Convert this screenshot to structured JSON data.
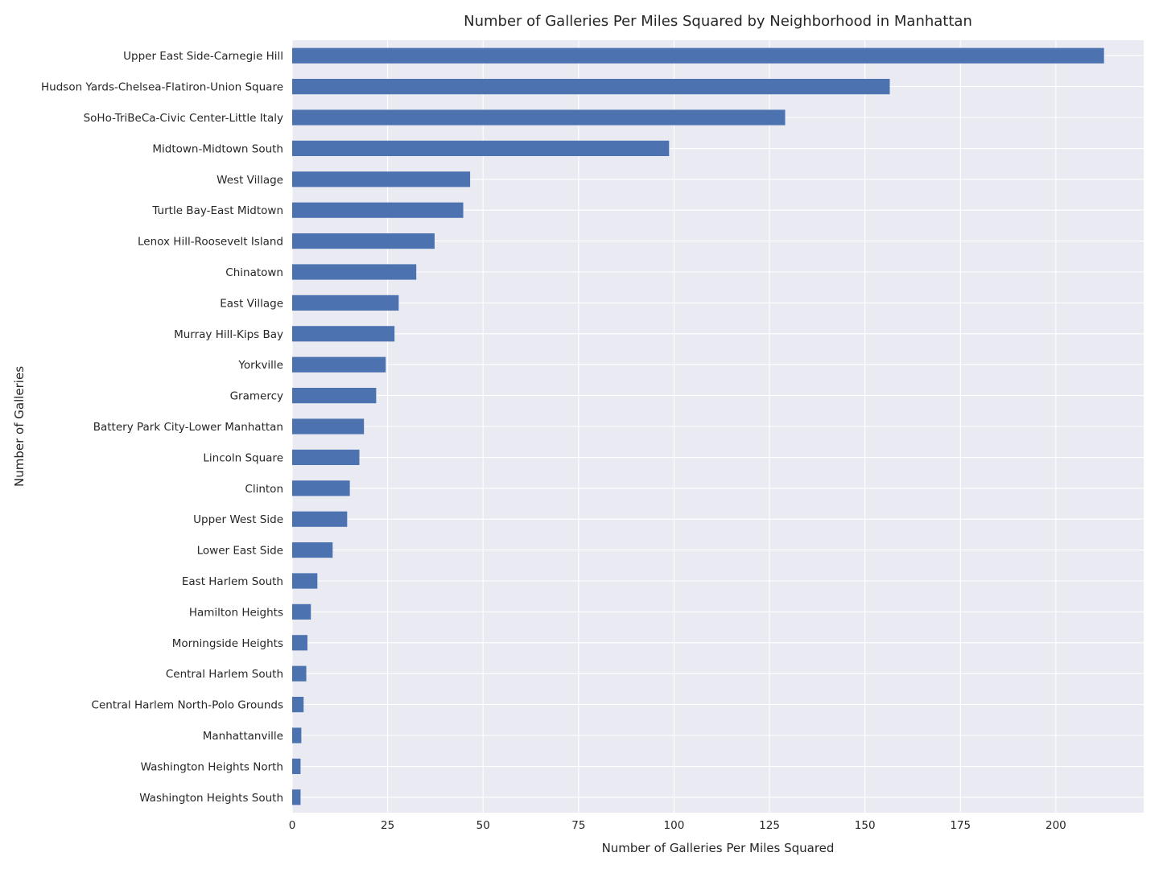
{
  "chart_data": {
    "type": "bar",
    "orientation": "horizontal",
    "title": "Number of Galleries Per Miles Squared by Neighborhood in Manhattan",
    "xlabel": "Number of Galleries Per Miles Squared",
    "ylabel": "Number of Galleries",
    "xlim": [
      0,
      223
    ],
    "xticks": [
      0,
      25,
      50,
      75,
      100,
      125,
      150,
      175,
      200
    ],
    "grid": true,
    "bar_color": "#4c72b0",
    "background_color": "#eaeaf2",
    "categories": [
      "Upper East Side-Carnegie Hill",
      "Hudson Yards-Chelsea-Flatiron-Union Square",
      "SoHo-TriBeCa-Civic Center-Little Italy",
      "Midtown-Midtown South",
      "West Village",
      "Turtle Bay-East Midtown",
      "Lenox Hill-Roosevelt Island",
      "Chinatown",
      "East Village",
      "Murray Hill-Kips Bay",
      "Yorkville",
      "Gramercy",
      "Battery Park City-Lower Manhattan",
      "Lincoln Square",
      "Clinton",
      "Upper West Side",
      "Lower East Side",
      "East Harlem South",
      "Hamilton Heights",
      "Morningside Heights",
      "Central Harlem South",
      "Central Harlem North-Polo Grounds",
      "Manhattanville",
      "Washington Heights North",
      "Washington Heights South"
    ],
    "values": [
      212.6,
      156.5,
      129.1,
      98.7,
      46.6,
      44.8,
      37.3,
      32.5,
      27.9,
      26.8,
      24.5,
      22.0,
      18.8,
      17.6,
      15.1,
      14.4,
      10.6,
      6.6,
      4.9,
      4.0,
      3.7,
      3.0,
      2.4,
      2.2,
      2.2
    ]
  }
}
